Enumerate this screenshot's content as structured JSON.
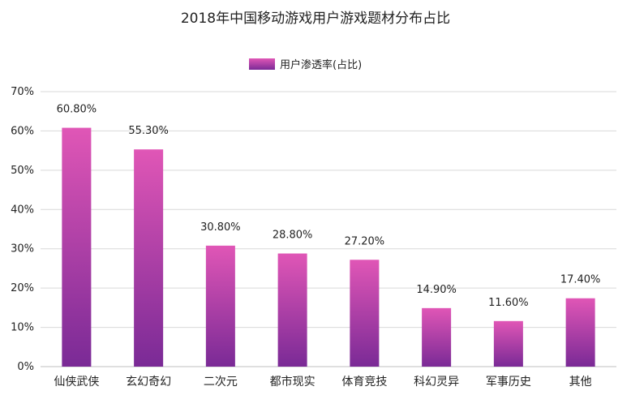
{
  "colors": {
    "bar_top": "#e056b6",
    "bar_bottom": "#7a2a96",
    "grid": "#d9d9d9",
    "axis": "#bfbfbf",
    "text": "#222222"
  },
  "chart_data": {
    "type": "bar",
    "title": "2018年中国移动游戏用户游戏题材分布占比",
    "categories": [
      "仙侠武侠",
      "玄幻奇幻",
      "二次元",
      "都市现实",
      "体育竞技",
      "科幻灵异",
      "军事历史",
      "其他"
    ],
    "series": [
      {
        "name": "用户渗透率(占比)",
        "values": [
          60.8,
          55.3,
          30.8,
          28.8,
          27.2,
          14.9,
          11.6,
          17.4
        ],
        "data_labels": [
          "60.80%",
          "55.30%",
          "30.80%",
          "28.80%",
          "27.20%",
          "14.90%",
          "11.60%",
          "17.40%"
        ]
      }
    ],
    "ylim": [
      0,
      70
    ],
    "yticks": [
      0,
      10,
      20,
      30,
      40,
      50,
      60,
      70
    ],
    "ytick_labels": [
      "0%",
      "10%",
      "20%",
      "30%",
      "40%",
      "50%",
      "60%",
      "70%"
    ],
    "grid": true,
    "legend_position": "top-center"
  }
}
